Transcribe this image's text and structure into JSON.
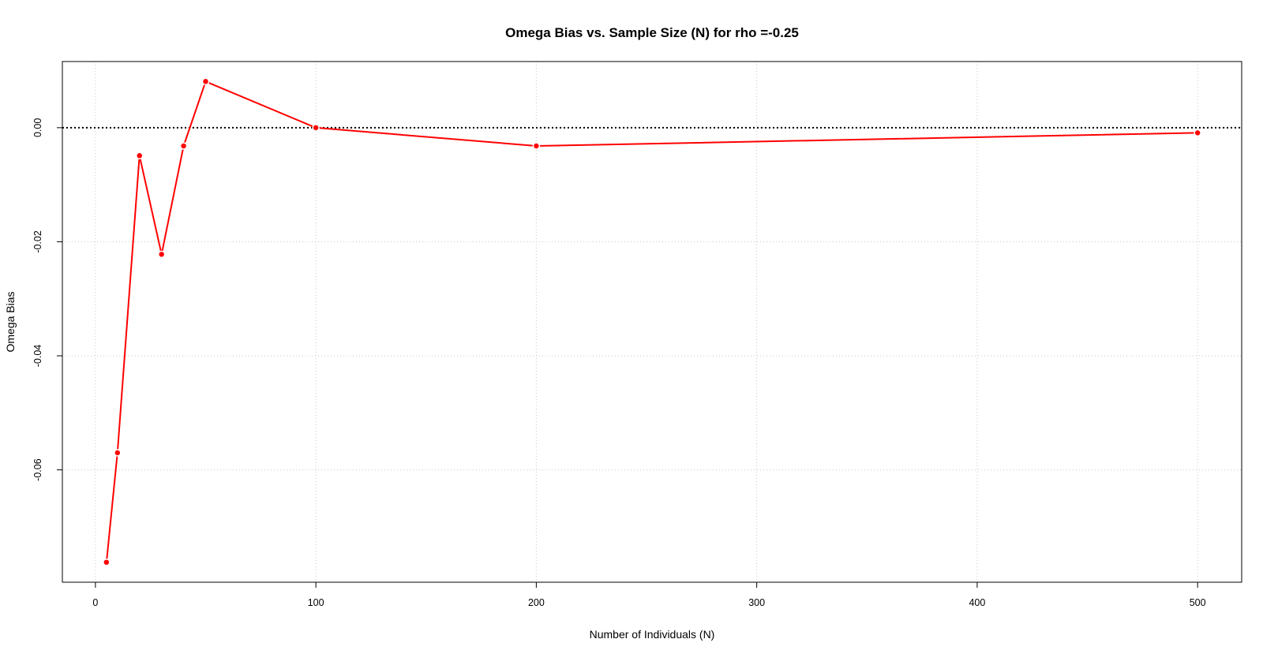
{
  "chart_data": {
    "type": "line",
    "title": "Omega Bias vs. Sample Size (N) for rho =-0.25",
    "xlabel": "Number of Individuals (N)",
    "ylabel": "Omega Bias",
    "x": [
      5,
      10,
      20,
      30,
      40,
      50,
      100,
      200,
      500
    ],
    "series": [
      {
        "values": [
          -0.0762,
          -0.057,
          -0.0049,
          -0.0222,
          -0.0032,
          0.0081,
          0.0,
          -0.0032,
          -0.0009
        ],
        "color": "#ff0000",
        "markers": true
      }
    ],
    "xlim": [
      -15,
      520
    ],
    "ylim": [
      -0.0797,
      0.0116
    ],
    "x_ticks": [
      0,
      100,
      200,
      300,
      400,
      500
    ],
    "x_tick_labels": [
      "0",
      "100",
      "200",
      "300",
      "400",
      "500"
    ],
    "y_ticks": [
      0,
      -0.02,
      -0.04,
      -0.06
    ],
    "y_tick_labels": [
      "0.00",
      "-0.02",
      "-0.04",
      "-0.06"
    ],
    "grid": true,
    "reference_line": {
      "y": 0,
      "style": "dotted",
      "color": "#000000"
    }
  }
}
